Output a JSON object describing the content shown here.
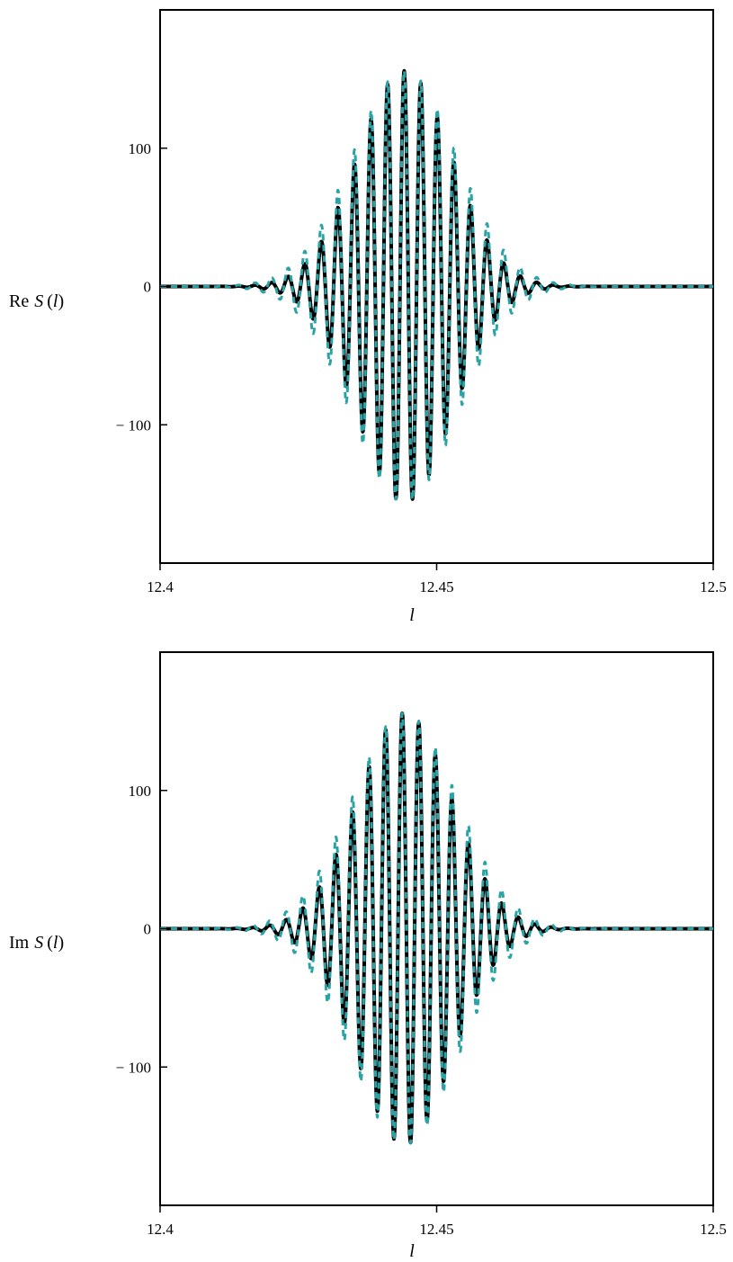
{
  "chart_data": [
    {
      "type": "line",
      "title": "",
      "xlabel": "l",
      "ylabel_prefix": "Re",
      "ylabel_func": "S",
      "ylabel_arg": "l",
      "xlim": [
        12.4,
        12.5
      ],
      "ylim": [
        -200,
        200
      ],
      "x_ticks": [
        12.4,
        12.45,
        12.5
      ],
      "x_tick_labels": [
        "12.4",
        "12.45",
        "12.5"
      ],
      "y_ticks": [
        100,
        0,
        -100
      ],
      "y_tick_labels": [
        "100",
        "0",
        "− 100"
      ],
      "grid": false,
      "legend": "none",
      "series": [
        {
          "style": "solid",
          "color": "#000000",
          "center": 12.4442,
          "period": 0.003,
          "phase": 0.15,
          "width": 0.0085,
          "amplitude": 156
        },
        {
          "style": "dashed",
          "color": "#2aa3a6",
          "center": 12.4442,
          "period": 0.003,
          "phase": 0.15,
          "width": 0.0095,
          "amplitude": 156
        }
      ]
    },
    {
      "type": "line",
      "title": "",
      "xlabel": "l",
      "ylabel_prefix": "Im",
      "ylabel_func": "S",
      "ylabel_arg": "l",
      "xlim": [
        12.4,
        12.5
      ],
      "ylim": [
        -200,
        200
      ],
      "x_ticks": [
        12.4,
        12.45,
        12.5
      ],
      "x_tick_labels": [
        "12.4",
        "12.45",
        "12.5"
      ],
      "y_ticks": [
        100,
        0,
        -100
      ],
      "y_tick_labels": [
        "100",
        "0",
        "− 100"
      ],
      "grid": false,
      "legend": "none",
      "series": [
        {
          "style": "solid",
          "color": "#000000",
          "center": 12.4442,
          "period": 0.003,
          "phase": 0.9,
          "width": 0.0085,
          "amplitude": 156
        },
        {
          "style": "dashed",
          "color": "#2aa3a6",
          "center": 12.4442,
          "period": 0.003,
          "phase": 0.9,
          "width": 0.0095,
          "amplitude": 156
        }
      ]
    }
  ]
}
